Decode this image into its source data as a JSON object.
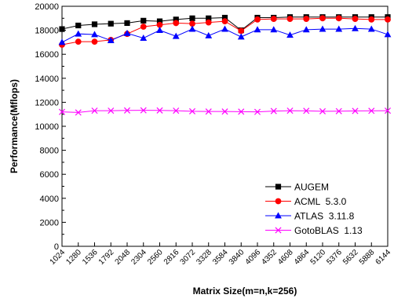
{
  "chart_data": {
    "type": "line",
    "title": "",
    "xlabel": "Matrix Size(m=n,k=256)",
    "ylabel": "Performance(Mflops)",
    "ylim": [
      0,
      20000
    ],
    "yticks": [
      0,
      2000,
      4000,
      6000,
      8000,
      10000,
      12000,
      14000,
      16000,
      18000,
      20000
    ],
    "grid": false,
    "legend_position": "bottom-right",
    "x": [
      1024,
      1280,
      1536,
      1792,
      2048,
      2304,
      2560,
      2816,
      3072,
      3328,
      3584,
      3840,
      4096,
      4352,
      4608,
      4864,
      5120,
      5376,
      5632,
      5888,
      6144
    ],
    "x_tick_labels": [
      "1024",
      "1280",
      "1536",
      "1792",
      "2048",
      "2304",
      "2560",
      "2816",
      "3072",
      "3328",
      "3584",
      "3840",
      "4096",
      "4352",
      "4608",
      "4864",
      "5120",
      "5376",
      "5632",
      "5888",
      "6144"
    ],
    "series": [
      {
        "name": "AUGEM",
        "color": "#000000",
        "marker": "square",
        "values": [
          18100,
          18400,
          18500,
          18550,
          18600,
          18800,
          18750,
          18900,
          19000,
          19000,
          19050,
          18000,
          19050,
          19050,
          19100,
          19100,
          19100,
          19100,
          19100,
          19100,
          19100
        ]
      },
      {
        "name": "ACML  5.3.0",
        "color": "#ff0000",
        "marker": "circle",
        "values": [
          16800,
          17050,
          17050,
          17200,
          17700,
          18300,
          18450,
          18600,
          18550,
          18650,
          18750,
          17950,
          18900,
          18950,
          18950,
          18950,
          19000,
          19000,
          18950,
          18900,
          18900
        ]
      },
      {
        "name": "ATLAS  3.11.8",
        "color": "#0000ff",
        "marker": "triangle",
        "values": [
          17000,
          17700,
          17650,
          17150,
          17750,
          17350,
          18000,
          17500,
          18100,
          17550,
          18100,
          17450,
          18050,
          18050,
          17600,
          18050,
          18100,
          18100,
          18150,
          18100,
          17650
        ]
      },
      {
        "name": "GotoBLAS  1.13",
        "color": "#ff00ff",
        "marker": "x",
        "values": [
          11200,
          11150,
          11300,
          11300,
          11320,
          11330,
          11320,
          11300,
          11250,
          11230,
          11230,
          11220,
          11200,
          11270,
          11300,
          11290,
          11250,
          11260,
          11280,
          11290,
          11300
        ]
      }
    ]
  }
}
